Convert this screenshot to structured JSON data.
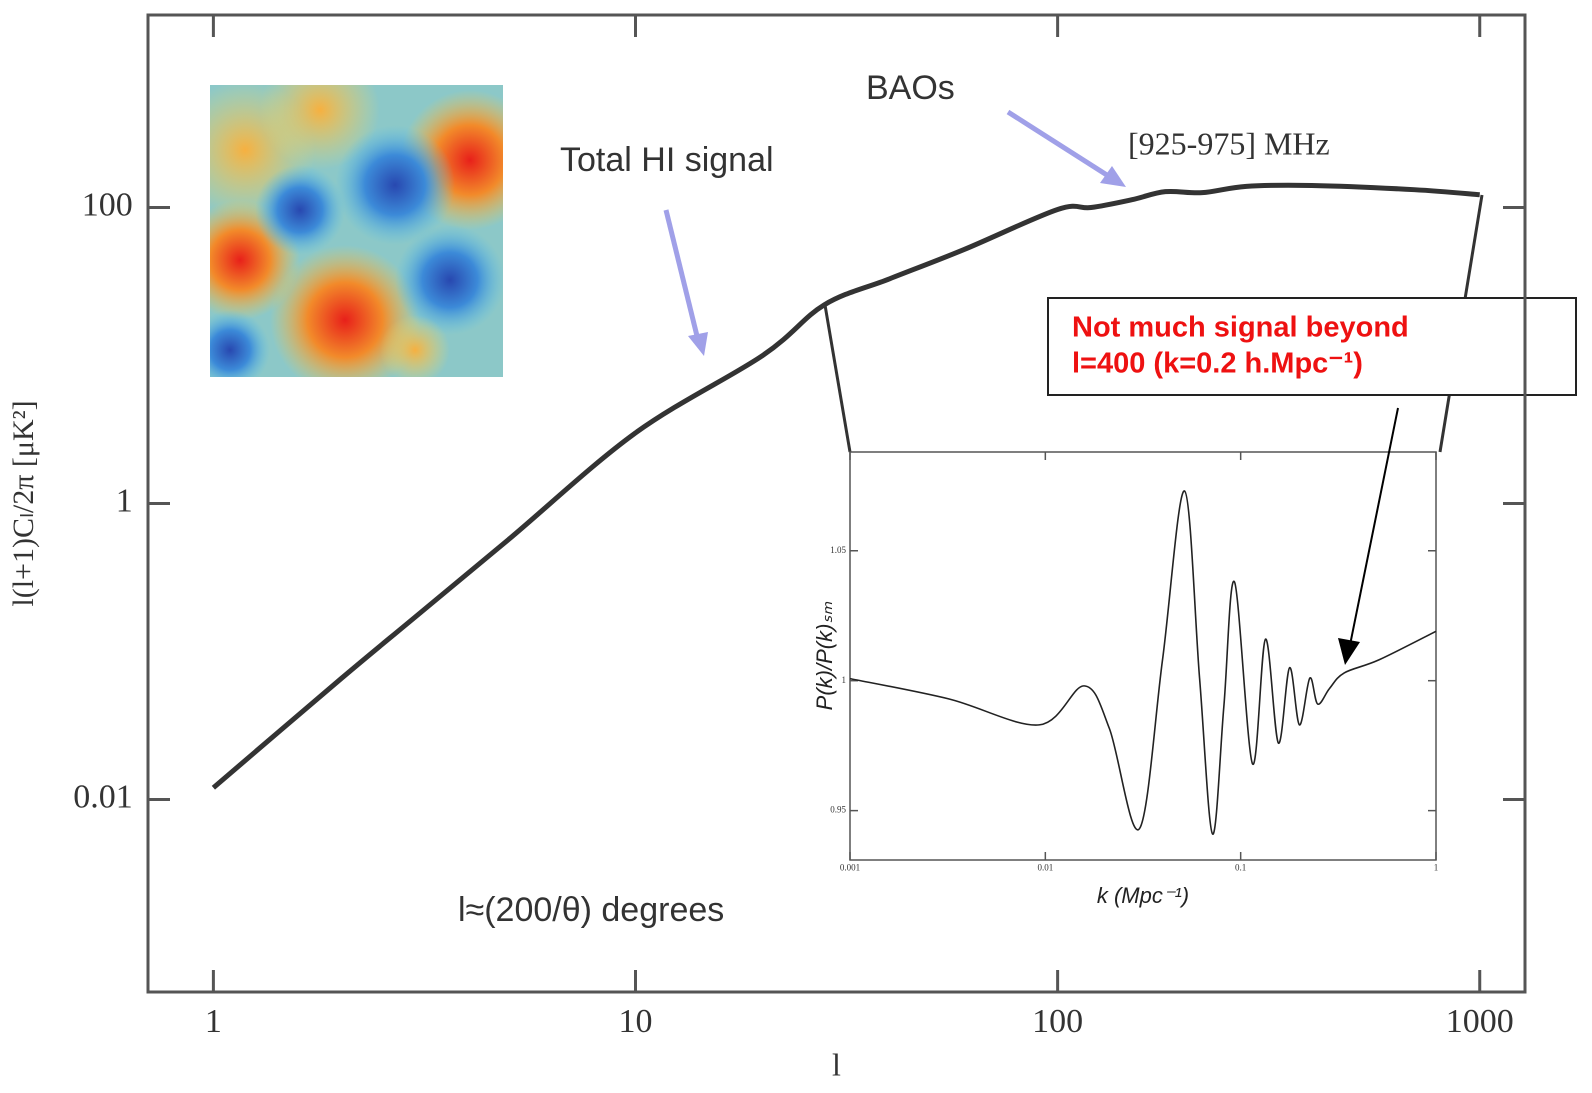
{
  "chart_data": [
    {
      "type": "line",
      "x_label": "l",
      "y_label": "l(l+1)Cₗ/2π [μK²]",
      "x": [
        1,
        2,
        3,
        5,
        10,
        20,
        28,
        40,
        60,
        100,
        120,
        150,
        180,
        220,
        280,
        400,
        700,
        1000
      ],
      "series": [
        {
          "color": "#333333",
          "values": [
            0.012,
            0.065,
            0.17,
            0.57,
            3.0,
            10,
            22,
            33,
            52,
            97,
            100,
            113,
            128,
            126,
            139,
            141,
            132,
            122
          ]
        }
      ],
      "xscale": "log",
      "yscale": "log",
      "xlim": [
        0.7,
        1280
      ],
      "ylim": [
        0.0005,
        2000
      ],
      "xticks": [
        1,
        10,
        100,
        1000
      ],
      "yticks": [
        0.01,
        1,
        100
      ],
      "annotations": [
        "Total HI signal",
        "BAOs",
        "[925-975] MHz",
        "l≈(200/θ) degrees"
      ],
      "callout": [
        "Not much signal beyond",
        "l=400 (k=0.2 h.Mpc⁻¹)"
      ]
    },
    {
      "type": "line",
      "x_label": "k (Mpc⁻¹)",
      "y_label": "P(k)/P(k)ₛₘ",
      "x": [
        0.001,
        0.0032,
        0.0093,
        0.0158,
        0.0213,
        0.0303,
        0.0398,
        0.0516,
        0.0616,
        0.0718,
        0.082,
        0.093,
        0.115,
        0.134,
        0.156,
        0.178,
        0.2,
        0.226,
        0.248,
        0.285,
        0.339,
        0.51,
        1
      ],
      "series": [
        {
          "color": "#222222",
          "values": [
            1.0008,
            0.993,
            0.983,
            0.998,
            0.9815,
            0.943,
            1.008,
            1.073,
            1.001,
            0.941,
            0.99,
            1.038,
            0.968,
            1.016,
            0.976,
            1.005,
            0.983,
            1.001,
            0.991,
            0.997,
            1.003,
            1.008,
            1.019
          ]
        }
      ],
      "xscale": "log",
      "yscale": "linear",
      "xlim": [
        0.001,
        1
      ],
      "ylim": [
        0.931,
        1.088
      ],
      "xticks": [
        0.001,
        0.01,
        0.1,
        1
      ],
      "yticks": [
        0.95,
        1,
        1.05
      ]
    }
  ]
}
